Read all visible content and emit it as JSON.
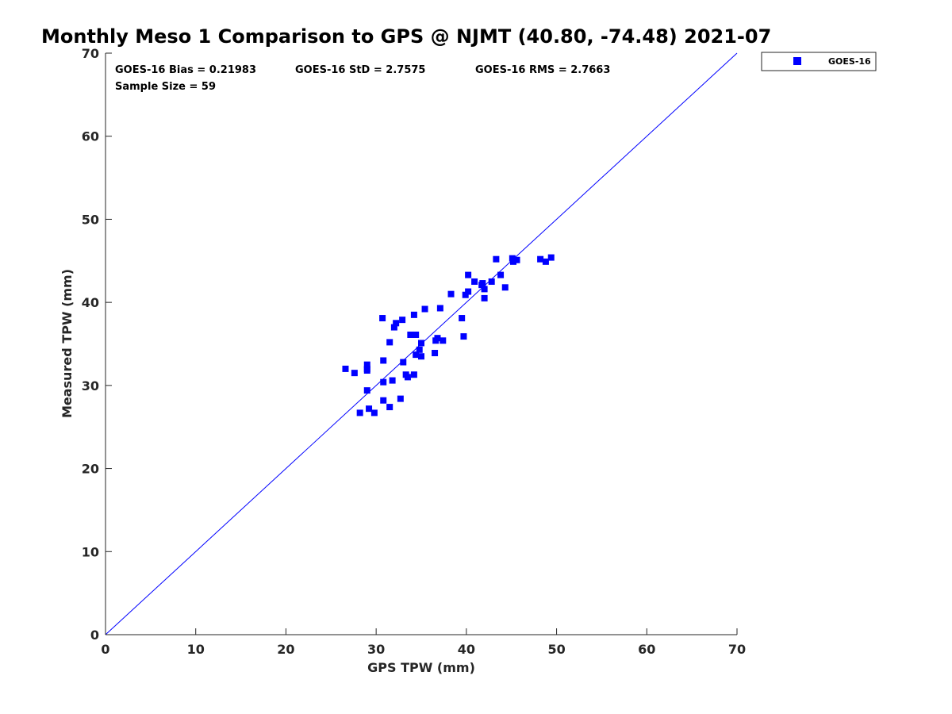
{
  "chart_data": {
    "type": "scatter",
    "title": "Monthly Meso 1 Comparison to GPS @ NJMT (40.80, -74.48) 2021-07",
    "xlabel": "GPS TPW (mm)",
    "ylabel": "Measured TPW (mm)",
    "xlim": [
      0,
      70
    ],
    "ylim": [
      0,
      70
    ],
    "xticks": [
      "0",
      "10",
      "20",
      "30",
      "40",
      "50",
      "60",
      "70"
    ],
    "yticks": [
      "0",
      "10",
      "20",
      "30",
      "40",
      "50",
      "60",
      "70"
    ],
    "grid": false,
    "legend_position": "outside-top-right",
    "stats": {
      "bias": "GOES-16 Bias = 0.21983",
      "std": "GOES-16 StD = 2.7575",
      "rms": "GOES-16 RMS = 2.7663",
      "sample_size": "Sample Size = 59"
    },
    "reference_line": {
      "x": [
        0,
        70
      ],
      "y": [
        0,
        70
      ],
      "color": "#0000ff"
    },
    "series": [
      {
        "name": "GOES-16",
        "color": "#0000ff",
        "marker": "square",
        "points": [
          [
            26.6,
            32.0
          ],
          [
            27.6,
            31.5
          ],
          [
            28.2,
            26.7
          ],
          [
            29.0,
            32.5
          ],
          [
            29.0,
            32.0
          ],
          [
            29.0,
            31.8
          ],
          [
            29.0,
            29.4
          ],
          [
            29.2,
            27.2
          ],
          [
            29.8,
            26.7
          ],
          [
            30.7,
            38.1
          ],
          [
            30.8,
            33.0
          ],
          [
            30.8,
            30.4
          ],
          [
            30.8,
            28.2
          ],
          [
            31.5,
            35.2
          ],
          [
            31.5,
            27.4
          ],
          [
            31.8,
            30.6
          ],
          [
            32.0,
            37.0
          ],
          [
            32.2,
            37.5
          ],
          [
            32.7,
            28.4
          ],
          [
            32.9,
            37.9
          ],
          [
            33.0,
            32.8
          ],
          [
            33.3,
            31.3
          ],
          [
            33.5,
            31.0
          ],
          [
            33.8,
            36.1
          ],
          [
            34.2,
            31.3
          ],
          [
            34.2,
            38.5
          ],
          [
            34.4,
            36.1
          ],
          [
            34.4,
            33.7
          ],
          [
            34.8,
            34.3
          ],
          [
            35.0,
            33.5
          ],
          [
            35.0,
            35.1
          ],
          [
            35.4,
            39.2
          ],
          [
            36.5,
            33.9
          ],
          [
            36.6,
            35.4
          ],
          [
            36.8,
            35.7
          ],
          [
            37.1,
            39.3
          ],
          [
            37.4,
            35.4
          ],
          [
            38.3,
            41.0
          ],
          [
            39.5,
            38.1
          ],
          [
            39.7,
            35.9
          ],
          [
            39.9,
            40.9
          ],
          [
            40.2,
            43.3
          ],
          [
            40.2,
            41.3
          ],
          [
            40.9,
            42.5
          ],
          [
            41.7,
            42.1
          ],
          [
            41.8,
            42.3
          ],
          [
            42.0,
            41.6
          ],
          [
            42.0,
            40.5
          ],
          [
            42.8,
            42.5
          ],
          [
            43.3,
            45.2
          ],
          [
            43.8,
            43.3
          ],
          [
            44.3,
            41.8
          ],
          [
            45.1,
            45.3
          ],
          [
            45.2,
            44.9
          ],
          [
            45.6,
            45.1
          ],
          [
            48.2,
            45.2
          ],
          [
            48.8,
            44.9
          ],
          [
            49.4,
            45.4
          ],
          [
            45.2,
            45.0
          ]
        ]
      }
    ]
  }
}
